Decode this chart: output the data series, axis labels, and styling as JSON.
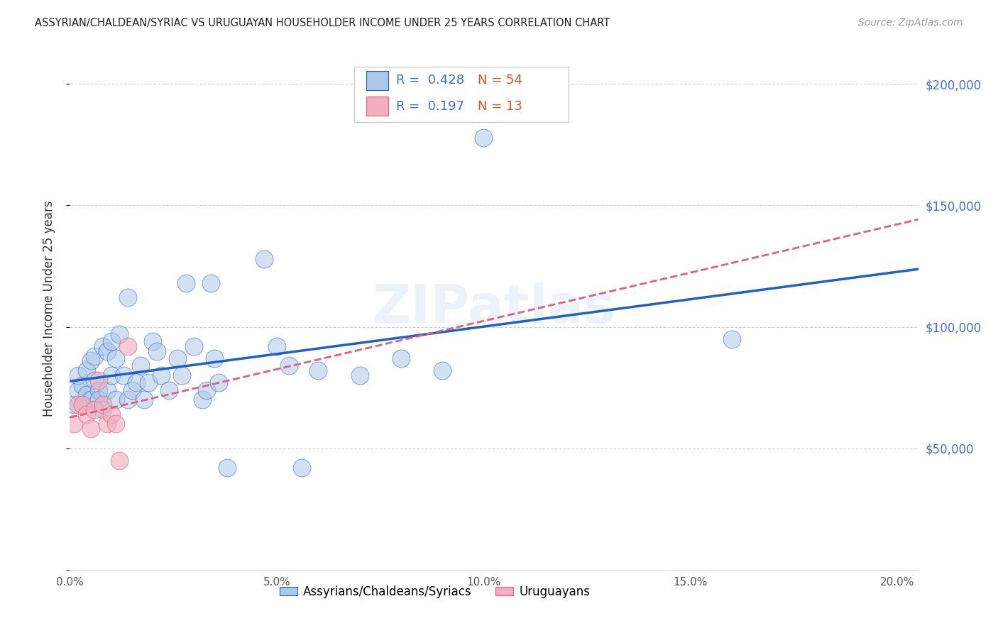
{
  "title": "ASSYRIAN/CHALDEAN/SYRIAC VS URUGUAYAN HOUSEHOLDER INCOME UNDER 25 YEARS CORRELATION CHART",
  "source": "Source: ZipAtlas.com",
  "ylabel_label": "Householder Income Under 25 years",
  "legend_label1": "Assyrians/Chaldeans/Syriacs",
  "legend_label2": "Uruguayans",
  "legend_r1": "R =  0.428",
  "legend_n1": "N = 54",
  "legend_r2": "R =  0.197",
  "legend_n2": "N = 13",
  "color_blue": "#adc8e8",
  "color_pink": "#f0b0c0",
  "trendline_blue": "#2060c0",
  "trendline_pink": "#e06080",
  "watermark": "ZIPatlas",
  "blue_points": [
    [
      0.001,
      68000
    ],
    [
      0.002,
      74000
    ],
    [
      0.002,
      80000
    ],
    [
      0.003,
      76000
    ],
    [
      0.003,
      68000
    ],
    [
      0.004,
      82000
    ],
    [
      0.004,
      72000
    ],
    [
      0.005,
      86000
    ],
    [
      0.005,
      70000
    ],
    [
      0.006,
      78000
    ],
    [
      0.006,
      88000
    ],
    [
      0.007,
      74000
    ],
    [
      0.007,
      70000
    ],
    [
      0.008,
      92000
    ],
    [
      0.008,
      66000
    ],
    [
      0.009,
      90000
    ],
    [
      0.009,
      74000
    ],
    [
      0.01,
      80000
    ],
    [
      0.01,
      94000
    ],
    [
      0.011,
      70000
    ],
    [
      0.011,
      87000
    ],
    [
      0.012,
      97000
    ],
    [
      0.013,
      80000
    ],
    [
      0.014,
      112000
    ],
    [
      0.014,
      70000
    ],
    [
      0.015,
      74000
    ],
    [
      0.016,
      77000
    ],
    [
      0.017,
      84000
    ],
    [
      0.018,
      70000
    ],
    [
      0.019,
      77000
    ],
    [
      0.02,
      94000
    ],
    [
      0.021,
      90000
    ],
    [
      0.022,
      80000
    ],
    [
      0.024,
      74000
    ],
    [
      0.026,
      87000
    ],
    [
      0.027,
      80000
    ],
    [
      0.028,
      118000
    ],
    [
      0.03,
      92000
    ],
    [
      0.032,
      70000
    ],
    [
      0.033,
      74000
    ],
    [
      0.034,
      118000
    ],
    [
      0.035,
      87000
    ],
    [
      0.036,
      77000
    ],
    [
      0.038,
      42000
    ],
    [
      0.047,
      128000
    ],
    [
      0.05,
      92000
    ],
    [
      0.053,
      84000
    ],
    [
      0.056,
      42000
    ],
    [
      0.06,
      82000
    ],
    [
      0.07,
      80000
    ],
    [
      0.08,
      87000
    ],
    [
      0.09,
      82000
    ],
    [
      0.1,
      178000
    ],
    [
      0.16,
      95000
    ]
  ],
  "pink_points": [
    [
      0.001,
      60000
    ],
    [
      0.002,
      68000
    ],
    [
      0.003,
      68000
    ],
    [
      0.004,
      64000
    ],
    [
      0.005,
      58000
    ],
    [
      0.006,
      66000
    ],
    [
      0.007,
      78000
    ],
    [
      0.008,
      68000
    ],
    [
      0.009,
      60000
    ],
    [
      0.01,
      64000
    ],
    [
      0.011,
      60000
    ],
    [
      0.012,
      45000
    ],
    [
      0.014,
      92000
    ]
  ],
  "xlim": [
    0.0,
    0.205
  ],
  "ylim": [
    0,
    215000
  ],
  "yticks_left": [
    0,
    50000,
    100000,
    150000,
    200000
  ],
  "yticks_right": [
    50000,
    100000,
    150000,
    200000
  ],
  "ytick_labels_right": [
    "$50,000",
    "$100,000",
    "$150,000",
    "$200,000"
  ],
  "xticks": [
    0.0,
    0.05,
    0.1,
    0.15,
    0.2
  ]
}
